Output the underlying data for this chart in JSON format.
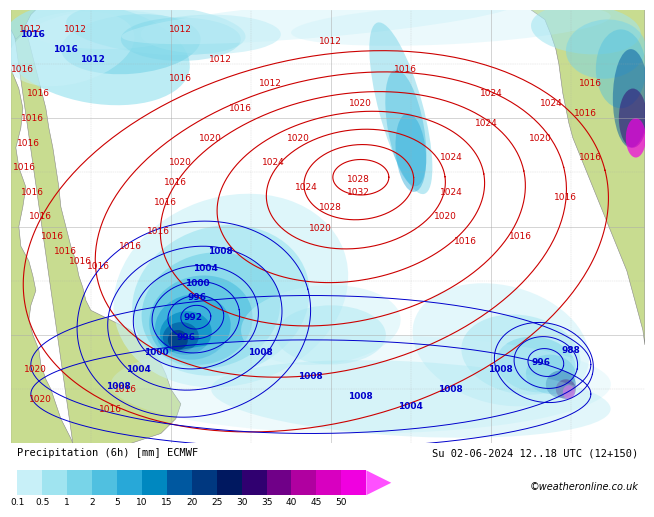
{
  "title_left": "Precipitation (6h) [mm] ECMWF",
  "title_right": "Su 02-06-2024 12..18 UTC (12+150)",
  "credit": "©weatheronline.co.uk",
  "colorbar_labels": [
    "0.1",
    "0.5",
    "1",
    "2",
    "5",
    "10",
    "15",
    "20",
    "25",
    "30",
    "35",
    "40",
    "45",
    "50"
  ],
  "colorbar_colors": [
    "#c8f0f8",
    "#a0e4f0",
    "#78d4e8",
    "#50c0e0",
    "#28a8d8",
    "#0088c0",
    "#0058a0",
    "#003880",
    "#001860",
    "#300070",
    "#700088",
    "#b000a0",
    "#d800c0",
    "#f000e0",
    "#ff50ff"
  ],
  "ocean_color": "#e8f4f8",
  "land_color_main": "#c8dc90",
  "land_color_alt": "#b8cc80",
  "grid_color": "#aaaaaa",
  "contour_red": "#cc0000",
  "contour_blue": "#0000cc",
  "bg_color": "#ffffff",
  "title_fontsize": 7.5,
  "credit_fontsize": 7,
  "label_fontsize": 6.5
}
